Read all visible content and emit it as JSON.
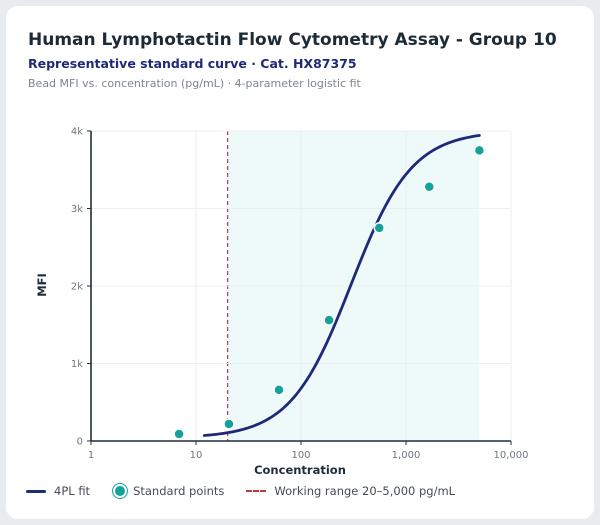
{
  "chart_data": {
    "type": "line",
    "title": "Human Lymphotactin Flow Cytometry Assay - Group 10",
    "subtitle": "Representative standard curve · Cat. HX87375",
    "note": "Bead MFI vs. concentration (pg/mL) · 4-parameter logistic fit",
    "xlabel": "Concentration",
    "ylabel": "MFI",
    "xscale": "log",
    "xlim": [
      1,
      10000
    ],
    "ylim": [
      0,
      4000
    ],
    "x_ticks": [
      1,
      10,
      100,
      1000,
      10000
    ],
    "x_tick_labels": [
      "1",
      "10",
      "100",
      "1,000",
      "10,000"
    ],
    "y_ticks": [
      0,
      1000,
      2000,
      3000,
      4000
    ],
    "y_tick_labels": [
      "0",
      "1k",
      "2k",
      "3k",
      "4k"
    ],
    "grid": true,
    "legend_position": "bottom",
    "working_range": {
      "min": 20,
      "max": 5000
    },
    "fit": {
      "A": 40,
      "B": 1.5,
      "C": 300,
      "D": 4000,
      "x_start": 12,
      "x_end": 5000
    },
    "series": [
      {
        "name": "Standard points",
        "points": [
          {
            "x": 6.9,
            "y": 90
          },
          {
            "x": 20.6,
            "y": 220
          },
          {
            "x": 61.7,
            "y": 660
          },
          {
            "x": 185,
            "y": 1560
          },
          {
            "x": 556,
            "y": 2750
          },
          {
            "x": 1667,
            "y": 3280
          },
          {
            "x": 5000,
            "y": 3750
          }
        ]
      }
    ],
    "legend": {
      "fit": "4PL fit",
      "points": "Standard points",
      "range": "Working range 20–5,000 pg/mL"
    },
    "colors": {
      "fit": "#1e2a78",
      "points": "#14a39a",
      "range_fill": "#eefafa",
      "range_line": "#c0393b",
      "grid": "#eceef1",
      "axis": "#1f2d3a"
    }
  }
}
